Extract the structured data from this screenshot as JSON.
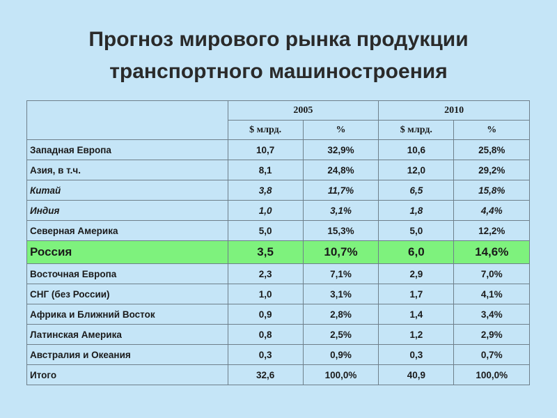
{
  "title": {
    "line1": "Прогноз мирового рынка продукции",
    "line2": "транспортного машиностроения"
  },
  "table": {
    "years": [
      "2005",
      "2010"
    ],
    "subheaders": [
      "$ млрд.",
      "%",
      "$ млрд.",
      "%"
    ],
    "rows": [
      {
        "name": "Западная Европа",
        "v": [
          "10,7",
          "32,9%",
          "10,6",
          "25,8%"
        ]
      },
      {
        "name": "Азия, в т.ч.",
        "v": [
          "8,1",
          "24,8%",
          "12,0",
          "29,2%"
        ]
      },
      {
        "name": "Китай",
        "v": [
          "3,8",
          "11,7%",
          "6,5",
          "15,8%"
        ],
        "italic": true
      },
      {
        "name": "Индия",
        "v": [
          "1,0",
          "3,1%",
          "1,8",
          "4,4%"
        ],
        "italic": true
      },
      {
        "name": "Северная Америка",
        "v": [
          "5,0",
          "15,3%",
          "5,0",
          "12,2%"
        ]
      },
      {
        "name": "Россия",
        "v": [
          "3,5",
          "10,7%",
          "6,0",
          "14,6%"
        ],
        "highlight": true
      },
      {
        "name": "Восточная Европа",
        "v": [
          "2,3",
          "7,1%",
          "2,9",
          "7,0%"
        ]
      },
      {
        "name": "СНГ (без России)",
        "v": [
          "1,0",
          "3,1%",
          "1,7",
          "4,1%"
        ]
      },
      {
        "name": "Африка и Ближний Восток",
        "v": [
          "0,9",
          "2,8%",
          "1,4",
          "3,4%"
        ]
      },
      {
        "name": "Латинская Америка",
        "v": [
          "0,8",
          "2,5%",
          "1,2",
          "2,9%"
        ]
      },
      {
        "name": "Австралия и Океания",
        "v": [
          "0,3",
          "0,9%",
          "0,3",
          "0,7%"
        ]
      },
      {
        "name": "Итого",
        "v": [
          "32,6",
          "100,0%",
          "40,9",
          "100,0%"
        ]
      }
    ]
  },
  "colors": {
    "background": "#c5e5f7",
    "highlight_row": "#7ef27d"
  }
}
